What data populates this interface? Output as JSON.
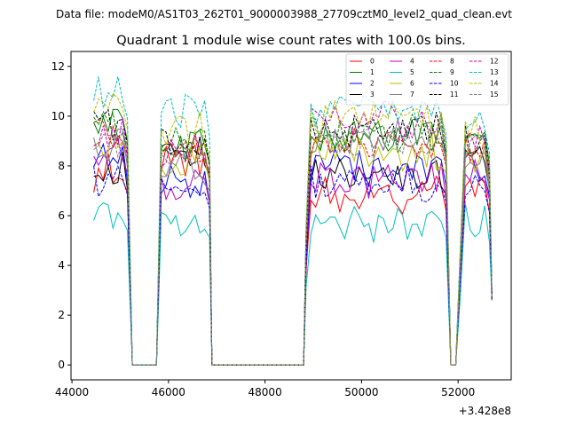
{
  "chart_data": {
    "type": "line",
    "suptitle": "Data file: modeM0/AS1T03_262T01_9000003988_27709cztM0_level2_quad_clean.evt",
    "title": "Quadrant 1 module wise count rates with 100.0s bins.",
    "xlabel": "",
    "ylabel": "",
    "x_offset_label": "+3.428e8",
    "xlim": [
      43980,
      53100
    ],
    "ylim": [
      -0.6,
      12.6
    ],
    "xticks": [
      44000,
      46000,
      48000,
      50000,
      52000
    ],
    "yticks": [
      0,
      2,
      4,
      6,
      8,
      10,
      12
    ],
    "legend_position": "top-right",
    "segments": [
      {
        "start": 44450,
        "end": 45050
      },
      {
        "start": 45850,
        "end": 46750
      },
      {
        "start": 48950,
        "end": 51650
      },
      {
        "start": 52150,
        "end": 52550
      }
    ],
    "transition_points": [
      {
        "x": 45150,
        "frac": 0.9
      },
      {
        "x": 45250,
        "frac": 0.0
      },
      {
        "x": 45750,
        "frac": 0.0
      },
      {
        "x": 45800,
        "frac": 0.5
      },
      {
        "x": 46850,
        "frac": 0.9
      },
      {
        "x": 46900,
        "frac": 0.0
      },
      {
        "x": 48800,
        "frac": 0.0
      },
      {
        "x": 48850,
        "frac": 0.55
      },
      {
        "x": 51750,
        "frac": 0.9
      },
      {
        "x": 51850,
        "frac": 0.0
      },
      {
        "x": 51950,
        "frac": 0.0
      },
      {
        "x": 52050,
        "frac": 0.5
      },
      {
        "x": 52650,
        "frac": 0.85
      },
      {
        "x": 52700,
        "frac": 0.32
      }
    ],
    "series": [
      {
        "name": "0",
        "color": "#ff0000",
        "dash": false,
        "levels": [
          7.7,
          8.2,
          6.9,
          7.2
        ]
      },
      {
        "name": "1",
        "color": "#008000",
        "dash": false,
        "levels": [
          10.0,
          9.0,
          9.3,
          9.5
        ]
      },
      {
        "name": "2",
        "color": "#0000ff",
        "dash": false,
        "levels": [
          8.2,
          7.2,
          8.0,
          8.0
        ]
      },
      {
        "name": "3",
        "color": "#000000",
        "dash": false,
        "levels": [
          7.8,
          8.5,
          7.6,
          8.3
        ]
      },
      {
        "name": "4",
        "color": "#bf00bf",
        "dash": false,
        "levels": [
          8.6,
          7.2,
          7.4,
          7.8
        ]
      },
      {
        "name": "5",
        "color": "#00bfbf",
        "dash": false,
        "levels": [
          6.0,
          5.7,
          5.7,
          5.8
        ]
      },
      {
        "name": "6",
        "color": "#bfbf00",
        "dash": false,
        "levels": [
          9.0,
          8.2,
          8.6,
          8.2
        ]
      },
      {
        "name": "7",
        "color": "#808080",
        "dash": false,
        "levels": [
          8.8,
          7.8,
          9.1,
          8.2
        ]
      },
      {
        "name": "8",
        "color": "#ff0000",
        "dash": true,
        "levels": [
          9.4,
          8.6,
          8.9,
          8.7
        ]
      },
      {
        "name": "9",
        "color": "#008000",
        "dash": true,
        "levels": [
          9.6,
          8.9,
          9.4,
          9.0
        ]
      },
      {
        "name": "10",
        "color": "#0000ff",
        "dash": true,
        "levels": [
          7.6,
          7.0,
          7.3,
          7.2
        ]
      },
      {
        "name": "11",
        "color": "#000000",
        "dash": true,
        "levels": [
          9.8,
          8.9,
          9.5,
          9.2
        ]
      },
      {
        "name": "12",
        "color": "#bf00bf",
        "dash": true,
        "levels": [
          9.2,
          8.6,
          9.8,
          9.2
        ]
      },
      {
        "name": "13",
        "color": "#00bfbf",
        "dash": true,
        "levels": [
          11.0,
          10.2,
          10.3,
          10.0
        ]
      },
      {
        "name": "14",
        "color": "#bfbf00",
        "dash": true,
        "levels": [
          10.5,
          9.4,
          9.9,
          9.5
        ]
      },
      {
        "name": "15",
        "color": "#808080",
        "dash": true,
        "levels": [
          9.0,
          8.4,
          9.0,
          8.5
        ]
      }
    ]
  }
}
